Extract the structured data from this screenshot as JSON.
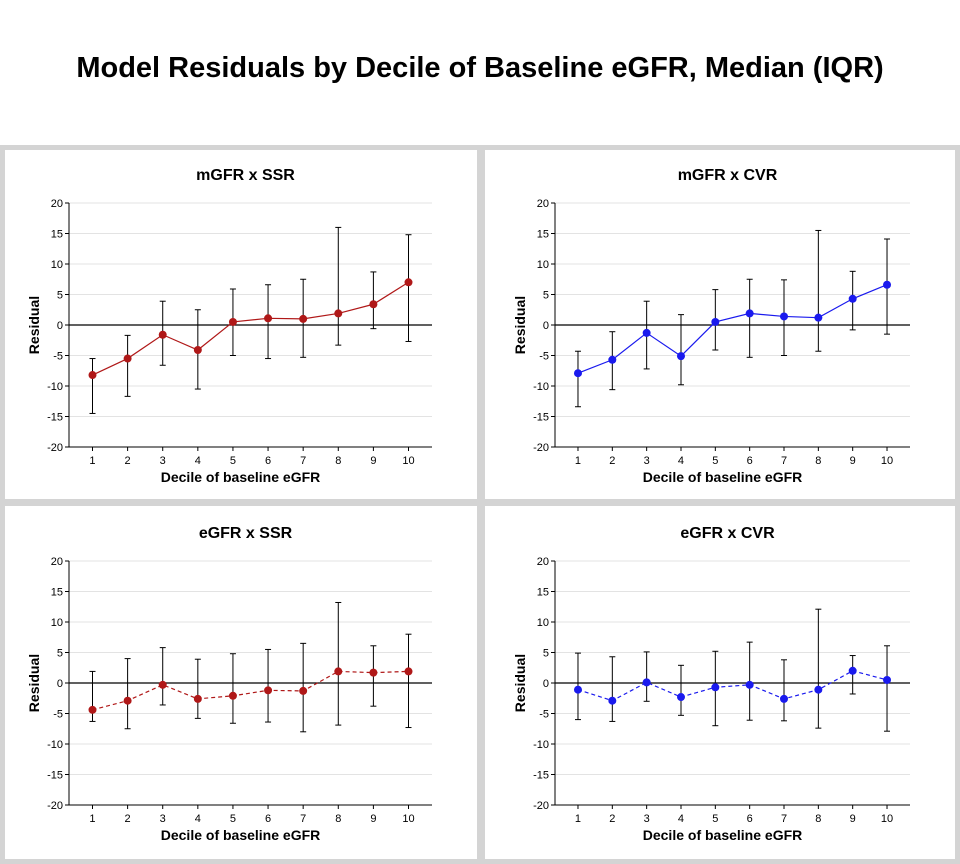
{
  "page_title": "Model Residuals by Decile of Baseline eGFR, Median (IQR)",
  "chart_data": [
    {
      "type": "line",
      "title": "mGFR x SSR",
      "xlabel": "Decile of baseline eGFR",
      "ylabel": "Residual",
      "x": [
        1,
        2,
        3,
        4,
        5,
        6,
        7,
        8,
        9,
        10
      ],
      "ylim": [
        -20,
        20
      ],
      "yticks": [
        -20,
        -15,
        -10,
        -5,
        0,
        5,
        10,
        15,
        20
      ],
      "grid": "horizontal",
      "line_style": "solid",
      "color": "#b01818",
      "series": [
        {
          "median": [
            -8.2,
            -5.5,
            -1.6,
            -4.1,
            0.5,
            1.1,
            1.0,
            1.9,
            3.4,
            7.0
          ],
          "q1": [
            -14.5,
            -11.7,
            -6.6,
            -10.5,
            -5.0,
            -5.5,
            -5.3,
            -3.3,
            -0.6,
            -2.7
          ],
          "q3": [
            -5.5,
            -1.7,
            3.9,
            2.5,
            5.9,
            6.6,
            7.5,
            16.0,
            8.7,
            14.8
          ]
        }
      ]
    },
    {
      "type": "line",
      "title": "mGFR x CVR",
      "xlabel": "Decile of baseline eGFR",
      "ylabel": "Residual",
      "x": [
        1,
        2,
        3,
        4,
        5,
        6,
        7,
        8,
        9,
        10
      ],
      "ylim": [
        -20,
        20
      ],
      "yticks": [
        -20,
        -15,
        -10,
        -5,
        0,
        5,
        10,
        15,
        20
      ],
      "grid": "horizontal",
      "line_style": "solid",
      "color": "#1a1aee",
      "series": [
        {
          "median": [
            -7.9,
            -5.7,
            -1.3,
            -5.1,
            0.5,
            1.9,
            1.4,
            1.2,
            4.3,
            6.6
          ],
          "q1": [
            -13.4,
            -10.6,
            -7.2,
            -9.8,
            -4.1,
            -5.3,
            -5.0,
            -4.3,
            -0.8,
            -1.5
          ],
          "q3": [
            -4.3,
            -1.1,
            3.9,
            1.7,
            5.8,
            7.5,
            7.4,
            15.5,
            8.8,
            14.1
          ]
        }
      ]
    },
    {
      "type": "line",
      "title": "eGFR x SSR",
      "xlabel": "Decile of baseline eGFR",
      "ylabel": "Residual",
      "x": [
        1,
        2,
        3,
        4,
        5,
        6,
        7,
        8,
        9,
        10
      ],
      "ylim": [
        -20,
        20
      ],
      "yticks": [
        -20,
        -15,
        -10,
        -5,
        0,
        5,
        10,
        15,
        20
      ],
      "grid": "horizontal",
      "line_style": "dashed",
      "color": "#b01818",
      "series": [
        {
          "median": [
            -4.4,
            -2.9,
            -0.3,
            -2.6,
            -2.1,
            -1.2,
            -1.3,
            1.9,
            1.7,
            1.9
          ],
          "q1": [
            -6.3,
            -7.5,
            -3.6,
            -5.8,
            -6.6,
            -6.4,
            -8.0,
            -6.9,
            -3.8,
            -7.3
          ],
          "q3": [
            1.9,
            4.0,
            5.8,
            3.9,
            4.8,
            5.5,
            6.5,
            13.2,
            6.1,
            8.0
          ]
        }
      ]
    },
    {
      "type": "line",
      "title": "eGFR x CVR",
      "xlabel": "Decile of baseline eGFR",
      "ylabel": "Residual",
      "x": [
        1,
        2,
        3,
        4,
        5,
        6,
        7,
        8,
        9,
        10
      ],
      "ylim": [
        -20,
        20
      ],
      "yticks": [
        -20,
        -15,
        -10,
        -5,
        0,
        5,
        10,
        15,
        20
      ],
      "grid": "horizontal",
      "line_style": "dashed",
      "color": "#1a1aee",
      "series": [
        {
          "median": [
            -1.1,
            -2.9,
            0.1,
            -2.3,
            -0.7,
            -0.3,
            -2.6,
            -1.1,
            2.0,
            0.5
          ],
          "q1": [
            -6.0,
            -6.3,
            -3.0,
            -5.3,
            -7.0,
            -6.1,
            -6.2,
            -7.4,
            -1.8,
            -7.9
          ],
          "q3": [
            4.9,
            4.3,
            5.1,
            2.9,
            5.2,
            6.7,
            3.8,
            12.1,
            4.5,
            6.1
          ]
        }
      ]
    }
  ]
}
